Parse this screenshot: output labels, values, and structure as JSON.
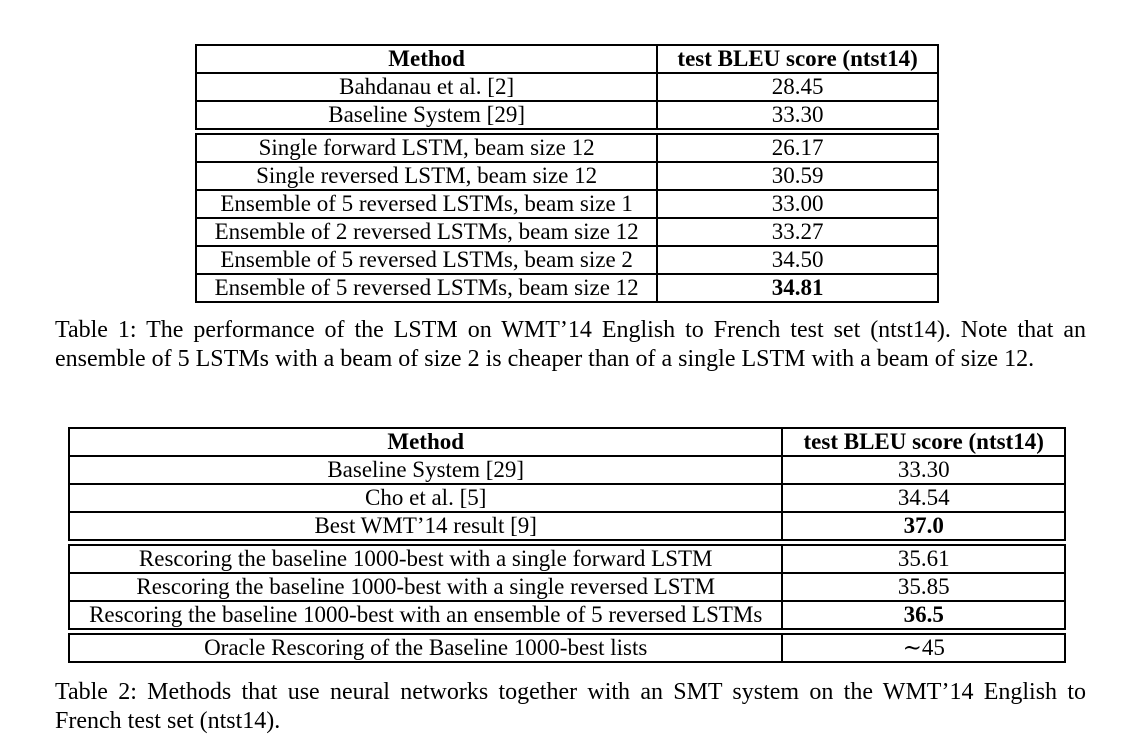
{
  "table1": {
    "header": {
      "method": "Method",
      "score": "test BLEU score (ntst14)"
    },
    "groups": [
      [
        {
          "method": "Bahdanau et al. [2]",
          "score": "28.45",
          "bold": false
        },
        {
          "method": "Baseline System [29]",
          "score": "33.30",
          "bold": false
        }
      ],
      [
        {
          "method": "Single forward LSTM, beam size 12",
          "score": "26.17",
          "bold": false
        },
        {
          "method": "Single reversed LSTM, beam size 12",
          "score": "30.59",
          "bold": false
        },
        {
          "method": "Ensemble of 5 reversed LSTMs, beam size 1",
          "score": "33.00",
          "bold": false
        },
        {
          "method": "Ensemble of 2 reversed LSTMs, beam size 12",
          "score": "33.27",
          "bold": false
        },
        {
          "method": "Ensemble of 5 reversed LSTMs, beam size 2",
          "score": "34.50",
          "bold": false
        },
        {
          "method": "Ensemble of 5 reversed LSTMs, beam size 12",
          "score": "34.81",
          "bold": true
        }
      ]
    ],
    "caption": "Table 1: The performance of the LSTM on WMT’14 English to French test set (ntst14). Note that an ensemble of 5 LSTMs with a beam of size 2 is cheaper than of a single LSTM with a beam of size 12."
  },
  "table2": {
    "header": {
      "method": "Method",
      "score": "test BLEU score (ntst14)"
    },
    "groups": [
      [
        {
          "method": "Baseline System [29]",
          "score": "33.30",
          "bold": false
        },
        {
          "method": "Cho et al. [5]",
          "score": "34.54",
          "bold": false
        },
        {
          "method": "Best WMT’14 result [9]",
          "score": "37.0",
          "bold": true
        }
      ],
      [
        {
          "method": "Rescoring the baseline 1000-best with a single forward LSTM",
          "score": "35.61",
          "bold": false
        },
        {
          "method": "Rescoring the baseline 1000-best with a single reversed LSTM",
          "score": "35.85",
          "bold": false
        },
        {
          "method": "Rescoring the baseline 1000-best with an ensemble of 5 reversed LSTMs",
          "score": "36.5",
          "bold": true
        }
      ],
      [
        {
          "method": "Oracle Rescoring of the Baseline 1000-best lists",
          "score": "∼45",
          "bold": false
        }
      ]
    ],
    "caption": "Table 2: Methods that use neural networks together with an SMT system on the WMT’14 English to French test set (ntst14)."
  }
}
